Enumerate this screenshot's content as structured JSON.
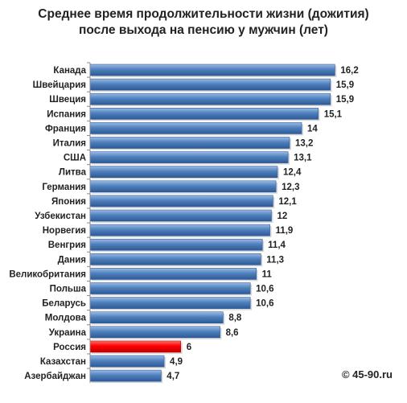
{
  "chart_data": {
    "type": "bar",
    "orientation": "horizontal",
    "title_line1": "Среднее время продолжительности жизни (дожития)",
    "title_line2": "после выхода на пенсию у мужчин (лет)",
    "categories": [
      "Канада",
      "Швейцария",
      "Швеция",
      "Испания",
      "Франция",
      "Италия",
      "США",
      "Литва",
      "Германия",
      "Япония",
      "Узбекистан",
      "Норвегия",
      "Венгрия",
      "Дания",
      "Великобритания",
      "Польша",
      "Беларусь",
      "Молдова",
      "Украина",
      "Россия",
      "Казахстан",
      "Азербайджан"
    ],
    "values": [
      16.2,
      15.9,
      15.9,
      15.1,
      14,
      13.2,
      13.1,
      12.4,
      12.3,
      12.1,
      12,
      11.9,
      11.4,
      11.3,
      11,
      10.6,
      10.6,
      8.8,
      8.6,
      6,
      4.9,
      4.7
    ],
    "value_labels": [
      "16,2",
      "15,9",
      "15,9",
      "15,1",
      "14",
      "13,2",
      "13,1",
      "12,4",
      "12,3",
      "12,1",
      "12",
      "11,9",
      "11,4",
      "11,3",
      "11",
      "10,6",
      "10,6",
      "8,8",
      "8,6",
      "6",
      "4,9",
      "4,7"
    ],
    "highlight": "Россия",
    "xlim": [
      0,
      16.5
    ],
    "grid": false,
    "legend": "none",
    "colors": {
      "bar": "#4f81bd",
      "bar_light": "#9cbbe6",
      "bar_dark": "#2e5a96",
      "highlight": "#ff0000",
      "highlight_light": "#ff6a6a",
      "highlight_dark": "#c00000",
      "axis": "#8a8a8a"
    }
  },
  "credit": "© 45-90.ru"
}
